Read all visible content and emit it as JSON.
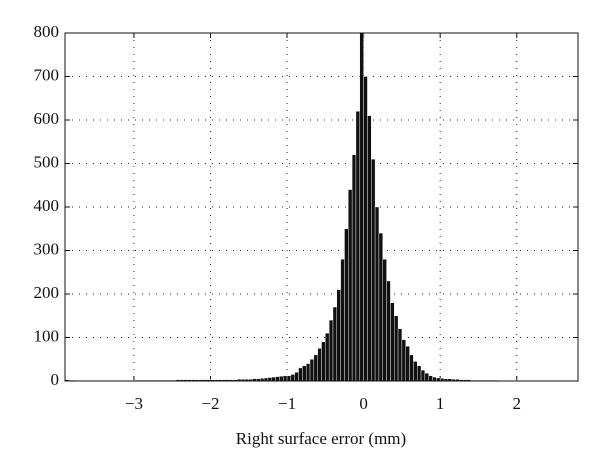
{
  "chart_data": {
    "type": "histogram",
    "xlabel": "Right surface error (mm)",
    "bins": [
      -3.9,
      -3.85,
      -3.8,
      -3.75,
      -3.7,
      -3.65,
      -3.6,
      -3.55,
      -3.5,
      -3.45,
      -3.4,
      -3.35,
      -3.3,
      -3.25,
      -3.2,
      -3.15,
      -3.1,
      -3.05,
      -3.0,
      -2.95,
      -2.9,
      -2.85,
      -2.8,
      -2.75,
      -2.7,
      -2.65,
      -2.6,
      -2.55,
      -2.5,
      -2.45,
      -2.4,
      -2.35,
      -2.3,
      -2.25,
      -2.2,
      -2.15,
      -2.1,
      -2.05,
      -2.0,
      -1.95,
      -1.9,
      -1.85,
      -1.8,
      -1.75,
      -1.7,
      -1.65,
      -1.6,
      -1.55,
      -1.5,
      -1.45,
      -1.4,
      -1.35,
      -1.3,
      -1.25,
      -1.2,
      -1.15,
      -1.1,
      -1.05,
      -1.0,
      -0.95,
      -0.9,
      -0.85,
      -0.8,
      -0.75,
      -0.7,
      -0.65,
      -0.6,
      -0.55,
      -0.5,
      -0.45,
      -0.4,
      -0.35,
      -0.3,
      -0.25,
      -0.2,
      -0.15,
      -0.1,
      -0.05,
      0,
      0.05,
      0.1,
      0.15,
      0.2,
      0.25,
      0.3,
      0.35,
      0.4,
      0.45,
      0.5,
      0.55,
      0.6,
      0.65,
      0.7,
      0.75,
      0.8,
      0.85,
      0.9,
      0.95,
      1.0,
      1.05,
      1.1,
      1.15,
      1.2,
      1.25,
      1.3,
      1.35,
      1.4,
      1.45,
      1.5,
      1.55,
      1.6,
      1.65,
      1.7,
      1.75,
      1.8,
      1.85,
      1.9,
      1.95,
      2.0,
      2.05,
      2.1,
      2.15,
      2.2,
      2.25,
      2.3,
      2.35,
      2.4,
      2.45,
      2.5,
      2.55,
      2.6,
      2.65,
      2.7,
      2.75,
      2.8
    ],
    "values": [
      3,
      2,
      2,
      1,
      1,
      1,
      1,
      1,
      1,
      1,
      1,
      1,
      1,
      1,
      1,
      1,
      1,
      1,
      2,
      2,
      2,
      2,
      2,
      2,
      2,
      2,
      2,
      2,
      2,
      3,
      3,
      3,
      3,
      3,
      3,
      3,
      3,
      3,
      3,
      3,
      3,
      3,
      3,
      3,
      3,
      4,
      4,
      4,
      4,
      5,
      5,
      6,
      7,
      8,
      9,
      10,
      11,
      12,
      12,
      15,
      20,
      30,
      35,
      40,
      50,
      60,
      75,
      90,
      110,
      140,
      170,
      210,
      280,
      350,
      440,
      520,
      620,
      800,
      700,
      610,
      510,
      400,
      340,
      280,
      230,
      180,
      150,
      120,
      95,
      80,
      60,
      45,
      35,
      25,
      18,
      12,
      9,
      7,
      6,
      5,
      5,
      4,
      4,
      3,
      3,
      3,
      2,
      2,
      2,
      2,
      2,
      2,
      2,
      1,
      1,
      1,
      1,
      1,
      1,
      1,
      1,
      1,
      1,
      1,
      1,
      1,
      0,
      1,
      0,
      0,
      1,
      0,
      0,
      0
    ],
    "color": "#111111",
    "xlim": [
      -3.9,
      2.8
    ],
    "ylim": [
      0,
      800
    ],
    "xticks": [
      {
        "value": -3,
        "label": "−3"
      },
      {
        "value": -2,
        "label": "−2"
      },
      {
        "value": -1,
        "label": "−1"
      },
      0,
      1,
      2
    ],
    "yticks": [
      0,
      100,
      200,
      300,
      400,
      500,
      600,
      700,
      800
    ],
    "grid": true
  }
}
